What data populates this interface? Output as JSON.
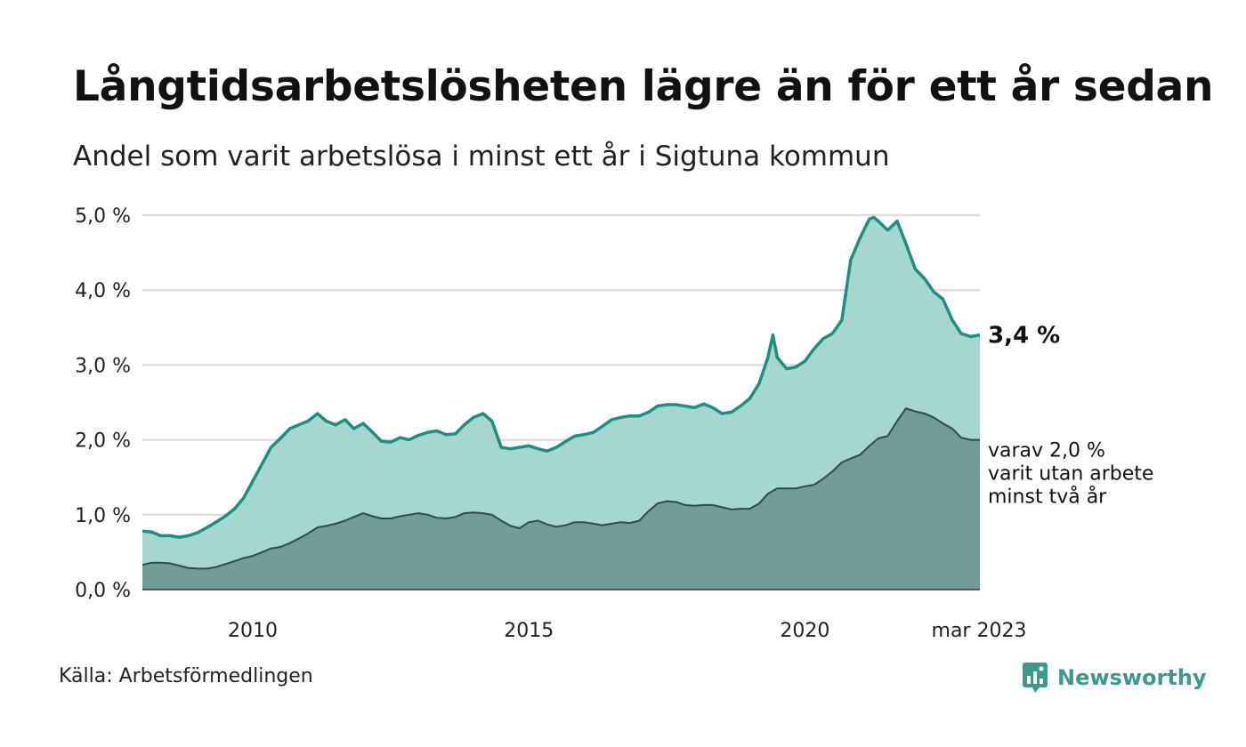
{
  "header": {
    "title": "Långtidsarbetslösheten lägre än för ett år sedan",
    "subtitle": "Andel som varit arbetslösa i minst ett år i Sigtuna kommun"
  },
  "footer": {
    "source": "Källa: Arbetsförmedlingen",
    "brand": "Newsworthy",
    "brand_icon": "bar-chart-speech-bubble-icon"
  },
  "chart_data": {
    "type": "area",
    "x_ticks": [
      {
        "x": 2010.0,
        "label": "2010"
      },
      {
        "x": 2015.0,
        "label": "2015"
      },
      {
        "x": 2020.0,
        "label": "2020"
      },
      {
        "x": 2023.17,
        "label": "mar 2023"
      }
    ],
    "y_ticks": [
      {
        "value": 0,
        "label": "0,0 %"
      },
      {
        "value": 1,
        "label": "1,0 %"
      },
      {
        "value": 2,
        "label": "2,0 %"
      },
      {
        "value": 3,
        "label": "3,0 %"
      },
      {
        "value": 4,
        "label": "4,0 %"
      },
      {
        "value": 5,
        "label": "5,0 %"
      }
    ],
    "xlim": [
      2008.0,
      2023.17
    ],
    "ylim": [
      0,
      5
    ],
    "grid": true,
    "colors": {
      "series1_line": "#1b9080",
      "series1_fill": "#a5d6d0",
      "series2_line": "#2b4d46",
      "series2_fill": "#719d96",
      "gridline": "#dddddd",
      "baseline": "#333333"
    },
    "series": [
      {
        "key": "minst_ett_ar",
        "end_label": "3,4 %",
        "points": [
          [
            2008.0,
            0.78
          ],
          [
            2008.17,
            0.77
          ],
          [
            2008.33,
            0.72
          ],
          [
            2008.5,
            0.72
          ],
          [
            2008.67,
            0.7
          ],
          [
            2008.83,
            0.72
          ],
          [
            2009.0,
            0.76
          ],
          [
            2009.17,
            0.83
          ],
          [
            2009.33,
            0.9
          ],
          [
            2009.5,
            0.98
          ],
          [
            2009.67,
            1.08
          ],
          [
            2009.83,
            1.22
          ],
          [
            2010.0,
            1.45
          ],
          [
            2010.17,
            1.68
          ],
          [
            2010.33,
            1.9
          ],
          [
            2010.5,
            2.02
          ],
          [
            2010.67,
            2.15
          ],
          [
            2010.83,
            2.2
          ],
          [
            2011.0,
            2.25
          ],
          [
            2011.17,
            2.35
          ],
          [
            2011.33,
            2.25
          ],
          [
            2011.5,
            2.2
          ],
          [
            2011.67,
            2.27
          ],
          [
            2011.83,
            2.15
          ],
          [
            2012.0,
            2.22
          ],
          [
            2012.17,
            2.1
          ],
          [
            2012.33,
            1.98
          ],
          [
            2012.5,
            1.97
          ],
          [
            2012.67,
            2.03
          ],
          [
            2012.83,
            2.0
          ],
          [
            2013.0,
            2.06
          ],
          [
            2013.17,
            2.1
          ],
          [
            2013.33,
            2.12
          ],
          [
            2013.5,
            2.07
          ],
          [
            2013.67,
            2.08
          ],
          [
            2013.83,
            2.2
          ],
          [
            2014.0,
            2.3
          ],
          [
            2014.17,
            2.35
          ],
          [
            2014.33,
            2.25
          ],
          [
            2014.5,
            1.9
          ],
          [
            2014.67,
            1.88
          ],
          [
            2014.83,
            1.9
          ],
          [
            2015.0,
            1.92
          ],
          [
            2015.17,
            1.88
          ],
          [
            2015.33,
            1.85
          ],
          [
            2015.5,
            1.9
          ],
          [
            2015.67,
            1.98
          ],
          [
            2015.83,
            2.05
          ],
          [
            2016.0,
            2.07
          ],
          [
            2016.17,
            2.1
          ],
          [
            2016.33,
            2.18
          ],
          [
            2016.5,
            2.27
          ],
          [
            2016.67,
            2.3
          ],
          [
            2016.83,
            2.32
          ],
          [
            2017.0,
            2.32
          ],
          [
            2017.17,
            2.37
          ],
          [
            2017.33,
            2.45
          ],
          [
            2017.5,
            2.47
          ],
          [
            2017.67,
            2.47
          ],
          [
            2017.83,
            2.45
          ],
          [
            2018.0,
            2.43
          ],
          [
            2018.17,
            2.48
          ],
          [
            2018.33,
            2.43
          ],
          [
            2018.5,
            2.35
          ],
          [
            2018.67,
            2.37
          ],
          [
            2018.83,
            2.45
          ],
          [
            2019.0,
            2.55
          ],
          [
            2019.17,
            2.75
          ],
          [
            2019.33,
            3.1
          ],
          [
            2019.42,
            3.4
          ],
          [
            2019.5,
            3.1
          ],
          [
            2019.67,
            2.95
          ],
          [
            2019.83,
            2.97
          ],
          [
            2020.0,
            3.05
          ],
          [
            2020.17,
            3.22
          ],
          [
            2020.33,
            3.35
          ],
          [
            2020.5,
            3.42
          ],
          [
            2020.67,
            3.6
          ],
          [
            2020.83,
            4.4
          ],
          [
            2021.0,
            4.7
          ],
          [
            2021.17,
            4.95
          ],
          [
            2021.25,
            4.97
          ],
          [
            2021.33,
            4.92
          ],
          [
            2021.5,
            4.8
          ],
          [
            2021.67,
            4.92
          ],
          [
            2021.83,
            4.62
          ],
          [
            2022.0,
            4.28
          ],
          [
            2022.17,
            4.15
          ],
          [
            2022.33,
            3.98
          ],
          [
            2022.5,
            3.88
          ],
          [
            2022.67,
            3.6
          ],
          [
            2022.83,
            3.42
          ],
          [
            2023.0,
            3.38
          ],
          [
            2023.17,
            3.4
          ]
        ]
      },
      {
        "key": "minst_tva_ar",
        "end_label": [
          "varav 2,0 %",
          "varit utan arbete",
          "minst två år"
        ],
        "points": [
          [
            2008.0,
            0.33
          ],
          [
            2008.17,
            0.36
          ],
          [
            2008.33,
            0.36
          ],
          [
            2008.5,
            0.35
          ],
          [
            2008.67,
            0.32
          ],
          [
            2008.83,
            0.29
          ],
          [
            2009.0,
            0.28
          ],
          [
            2009.17,
            0.28
          ],
          [
            2009.33,
            0.3
          ],
          [
            2009.5,
            0.34
          ],
          [
            2009.67,
            0.38
          ],
          [
            2009.83,
            0.42
          ],
          [
            2010.0,
            0.45
          ],
          [
            2010.17,
            0.5
          ],
          [
            2010.33,
            0.55
          ],
          [
            2010.5,
            0.57
          ],
          [
            2010.67,
            0.62
          ],
          [
            2010.83,
            0.68
          ],
          [
            2011.0,
            0.75
          ],
          [
            2011.17,
            0.83
          ],
          [
            2011.33,
            0.85
          ],
          [
            2011.5,
            0.88
          ],
          [
            2011.67,
            0.92
          ],
          [
            2011.83,
            0.97
          ],
          [
            2012.0,
            1.02
          ],
          [
            2012.17,
            0.98
          ],
          [
            2012.33,
            0.95
          ],
          [
            2012.5,
            0.95
          ],
          [
            2012.67,
            0.98
          ],
          [
            2012.83,
            1.0
          ],
          [
            2013.0,
            1.02
          ],
          [
            2013.17,
            1.0
          ],
          [
            2013.33,
            0.96
          ],
          [
            2013.5,
            0.95
          ],
          [
            2013.67,
            0.97
          ],
          [
            2013.83,
            1.02
          ],
          [
            2014.0,
            1.03
          ],
          [
            2014.17,
            1.02
          ],
          [
            2014.33,
            1.0
          ],
          [
            2014.5,
            0.92
          ],
          [
            2014.67,
            0.85
          ],
          [
            2014.83,
            0.82
          ],
          [
            2015.0,
            0.9
          ],
          [
            2015.17,
            0.92
          ],
          [
            2015.33,
            0.87
          ],
          [
            2015.5,
            0.84
          ],
          [
            2015.67,
            0.86
          ],
          [
            2015.83,
            0.9
          ],
          [
            2016.0,
            0.9
          ],
          [
            2016.17,
            0.88
          ],
          [
            2016.33,
            0.86
          ],
          [
            2016.5,
            0.88
          ],
          [
            2016.67,
            0.9
          ],
          [
            2016.83,
            0.89
          ],
          [
            2017.0,
            0.92
          ],
          [
            2017.17,
            1.05
          ],
          [
            2017.33,
            1.15
          ],
          [
            2017.5,
            1.18
          ],
          [
            2017.67,
            1.17
          ],
          [
            2017.83,
            1.13
          ],
          [
            2018.0,
            1.12
          ],
          [
            2018.17,
            1.13
          ],
          [
            2018.33,
            1.13
          ],
          [
            2018.5,
            1.1
          ],
          [
            2018.67,
            1.07
          ],
          [
            2018.83,
            1.08
          ],
          [
            2019.0,
            1.08
          ],
          [
            2019.17,
            1.15
          ],
          [
            2019.33,
            1.28
          ],
          [
            2019.5,
            1.35
          ],
          [
            2019.67,
            1.35
          ],
          [
            2019.83,
            1.35
          ],
          [
            2020.0,
            1.38
          ],
          [
            2020.17,
            1.4
          ],
          [
            2020.33,
            1.48
          ],
          [
            2020.5,
            1.58
          ],
          [
            2020.67,
            1.7
          ],
          [
            2020.83,
            1.75
          ],
          [
            2021.0,
            1.8
          ],
          [
            2021.17,
            1.92
          ],
          [
            2021.33,
            2.02
          ],
          [
            2021.5,
            2.05
          ],
          [
            2021.67,
            2.25
          ],
          [
            2021.83,
            2.42
          ],
          [
            2022.0,
            2.38
          ],
          [
            2022.17,
            2.35
          ],
          [
            2022.33,
            2.3
          ],
          [
            2022.5,
            2.22
          ],
          [
            2022.67,
            2.15
          ],
          [
            2022.83,
            2.03
          ],
          [
            2023.0,
            2.0
          ],
          [
            2023.17,
            2.0
          ]
        ]
      }
    ]
  }
}
